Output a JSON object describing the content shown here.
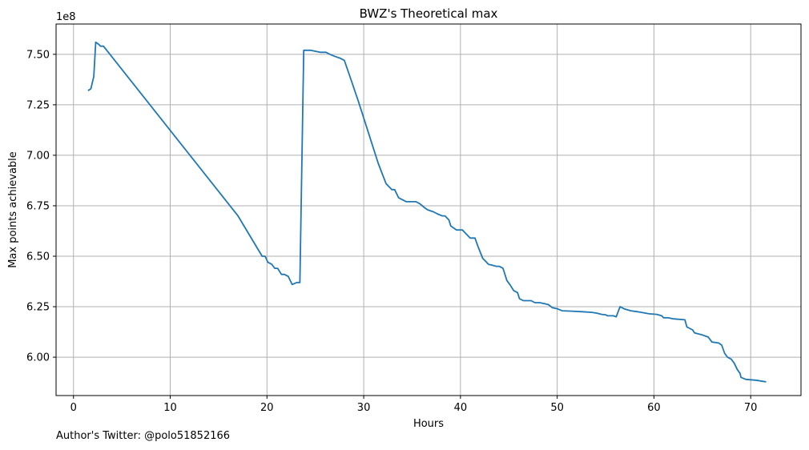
{
  "chart_data": {
    "type": "line",
    "title": "BWZ's Theoretical max",
    "xlabel": "Hours",
    "ylabel": "Max points achievable",
    "offset_label": "1e8",
    "x_ticks": [
      0,
      10,
      20,
      30,
      40,
      50,
      60,
      70
    ],
    "x_tick_labels": [
      "0",
      "10",
      "20",
      "30",
      "40",
      "50",
      "60",
      "70"
    ],
    "y_ticks": [
      6.0,
      6.25,
      6.5,
      6.75,
      7.0,
      7.25,
      7.5
    ],
    "y_tick_labels": [
      "6.00",
      "6.25",
      "6.50",
      "6.75",
      "7.00",
      "7.25",
      "7.50"
    ],
    "xlim": [
      -1.8,
      75.2
    ],
    "ylim": [
      5.81,
      7.65
    ],
    "grid": true,
    "line_color": "#1f77b4",
    "series": [
      {
        "x": [
          1.5,
          1.8,
          2.1,
          2.3,
          2.6,
          2.8,
          3.1,
          17.0,
          19.5,
          19.8,
          20.1,
          20.5,
          20.8,
          21.1,
          21.5,
          21.8,
          22.2,
          22.6,
          23.1,
          23.4,
          23.8,
          24.5,
          25.5,
          26.1,
          26.5,
          27.0,
          27.6,
          28.0,
          28.5,
          29.5,
          30.5,
          31.5,
          32.3,
          32.9,
          33.2,
          33.6,
          34.0,
          34.4,
          35.0,
          35.4,
          35.8,
          36.3,
          36.6,
          37.2,
          37.6,
          38.1,
          38.4,
          38.8,
          39.0,
          39.6,
          40.2,
          40.4,
          41.0,
          41.5,
          41.8,
          42.3,
          42.9,
          43.3,
          43.7,
          44.0,
          44.4,
          44.8,
          45.1,
          45.5,
          45.9,
          46.1,
          46.5,
          47.3,
          47.7,
          48.2,
          48.7,
          49.1,
          49.5,
          50.0,
          50.5,
          51.5,
          52.6,
          53.6,
          54.1,
          54.6,
          55.0,
          55.2,
          55.8,
          56.1,
          56.5,
          56.9,
          57.6,
          58.3,
          59.5,
          60.3,
          60.8,
          61.0,
          61.5,
          62.0,
          63.2,
          63.4,
          63.6,
          64.0,
          64.2,
          65.0,
          65.3,
          65.6,
          66.0,
          66.7,
          67.0,
          67.3,
          67.6,
          68.0,
          68.3,
          68.6,
          68.9,
          69.0,
          69.5,
          70.0,
          70.5,
          70.8,
          71.0,
          71.6
        ],
        "values": [
          7.32,
          7.33,
          7.39,
          7.56,
          7.55,
          7.54,
          7.54,
          6.7,
          6.5,
          6.5,
          6.47,
          6.46,
          6.44,
          6.44,
          6.41,
          6.41,
          6.4,
          6.36,
          6.37,
          6.37,
          7.52,
          7.52,
          7.51,
          7.51,
          7.5,
          7.49,
          7.48,
          7.47,
          7.4,
          7.26,
          7.11,
          6.96,
          6.86,
          6.83,
          6.83,
          6.79,
          6.78,
          6.77,
          6.77,
          6.77,
          6.76,
          6.74,
          6.73,
          6.72,
          6.71,
          6.7,
          6.7,
          6.68,
          6.65,
          6.63,
          6.63,
          6.62,
          6.59,
          6.59,
          6.55,
          6.49,
          6.46,
          6.455,
          6.45,
          6.45,
          6.44,
          6.38,
          6.36,
          6.33,
          6.32,
          6.29,
          6.28,
          6.28,
          6.27,
          6.27,
          6.265,
          6.26,
          6.245,
          6.24,
          6.23,
          6.228,
          6.225,
          6.222,
          6.218,
          6.212,
          6.21,
          6.205,
          6.205,
          6.2,
          6.25,
          6.24,
          6.23,
          6.225,
          6.215,
          6.212,
          6.205,
          6.195,
          6.195,
          6.19,
          6.185,
          6.15,
          6.145,
          6.135,
          6.12,
          6.11,
          6.105,
          6.1,
          6.075,
          6.07,
          6.06,
          6.02,
          6.0,
          5.99,
          5.97,
          5.94,
          5.92,
          5.9,
          5.89,
          5.888,
          5.886,
          5.884,
          5.882,
          5.878
        ]
      }
    ]
  },
  "footnote": "Author's Twitter: @polo51852166"
}
